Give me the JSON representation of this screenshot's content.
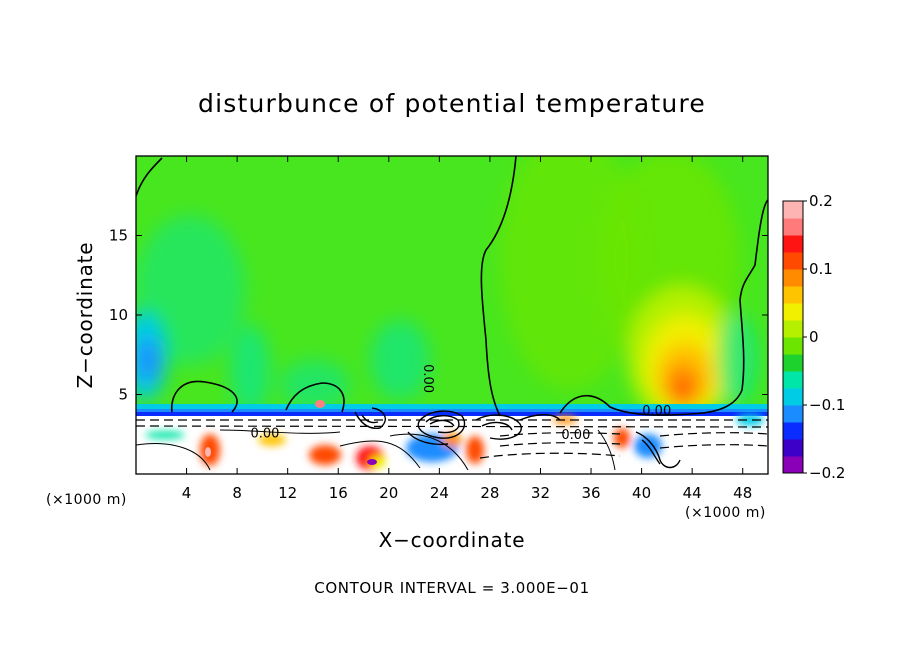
{
  "chart_data": {
    "type": "heatmap",
    "title": "disturbunce of potential temperature",
    "xlabel": "X−coordinate",
    "ylabel": "Z−coordinate",
    "x_unit": "(×1000 m)",
    "xlim": [
      0,
      50
    ],
    "ylim": [
      0,
      20
    ],
    "x_ticks": [
      4,
      8,
      12,
      16,
      20,
      24,
      28,
      32,
      36,
      40,
      44,
      48
    ],
    "y_ticks": [
      5,
      10,
      15
    ],
    "colorbar": {
      "range": [
        -0.2,
        0.2
      ],
      "tick_values": [
        0.2,
        0.1,
        0,
        -0.1,
        -0.2
      ],
      "tick_labels": [
        "0.2",
        "0.1",
        "0",
        "−0.1",
        "−0.2"
      ],
      "colors": [
        "#8a00b8",
        "#3c00c8",
        "#0a2cff",
        "#1a8cff",
        "#00cce6",
        "#00e6a8",
        "#1ed22e",
        "#6ce600",
        "#b4f000",
        "#f0f000",
        "#ffc400",
        "#ff8c00",
        "#ff4a00",
        "#ff1414",
        "#ff7a7a",
        "#ffb4b4"
      ]
    },
    "contour_labels": [
      {
        "text": "0.00",
        "x": 22.8,
        "y": 6.0
      },
      {
        "text": "0.00",
        "x": 41.2,
        "y": 3.7
      },
      {
        "text": "0.00",
        "x": 10.2,
        "y": 2.3
      },
      {
        "text": "0.00",
        "x": 34.8,
        "y": 2.2
      }
    ],
    "contour_interval": "CONTOUR INTERVAL = 3.000E−01"
  }
}
